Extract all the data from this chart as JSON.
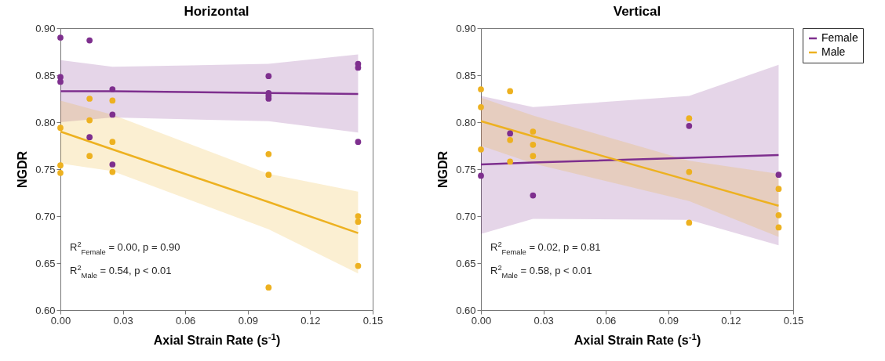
{
  "chart_data": [
    {
      "type": "scatter",
      "title": "Horizontal",
      "xlabel": "Axial Strain Rate (s$^{-1}$)",
      "ylabel": "NGDR",
      "marker": "circle",
      "xlim": [
        0,
        0.15
      ],
      "ylim": [
        0.6,
        0.9
      ],
      "xticks": [
        {
          "value": 0,
          "label": "0.00"
        },
        0.03,
        0.06,
        0.09,
        0.12,
        0.15
      ],
      "yticks": [
        {
          "value": 0.6,
          "label": "0.60"
        },
        0.65,
        {
          "value": 0.7,
          "label": "0.70"
        },
        0.75,
        {
          "value": 0.8,
          "label": "0.80"
        },
        0.85,
        {
          "value": 0.9,
          "label": "0.90"
        }
      ],
      "annotations": [
        "R$^{2}$$_{Female}$ = 0.00, p = 0.90",
        "R$^{2}$$_{Male}$ = 0.54, p < 0.01"
      ],
      "series": [
        {
          "type": "line",
          "marker": "none",
          "color": "#7e2f8e",
          "x": [
            0,
            0.025,
            0.1,
            0.143
          ],
          "values": [
            0.833,
            0.833,
            0.831,
            0.83
          ],
          "lower": [
            0.8,
            0.805,
            0.801,
            0.789
          ],
          "upper": [
            0.866,
            0.859,
            0.862,
            0.872
          ]
        },
        {
          "type": "line",
          "marker": "none",
          "color": "#edb120",
          "x": [
            0,
            0.025,
            0.1,
            0.143
          ],
          "values": [
            0.79,
            0.771,
            0.715,
            0.682
          ],
          "lower": [
            0.756,
            0.748,
            0.686,
            0.639
          ],
          "upper": [
            0.823,
            0.808,
            0.745,
            0.726
          ]
        },
        {
          "type": "scatter",
          "color": "#7e2f8e",
          "x": [
            0,
            0,
            0,
            0.014,
            0.014,
            0.025,
            0.025,
            0.025,
            0.1,
            0.1,
            0.1,
            0.1,
            0.143,
            0.143,
            0.143
          ],
          "values": [
            0.89,
            0.848,
            0.843,
            0.887,
            0.784,
            0.835,
            0.808,
            0.755,
            0.849,
            0.831,
            0.825,
            0.828,
            0.862,
            0.858,
            0.779
          ]
        },
        {
          "type": "scatter",
          "color": "#edb120",
          "x": [
            0,
            0,
            0,
            0.014,
            0.014,
            0.014,
            0.025,
            0.025,
            0.025,
            0.1,
            0.1,
            0.1,
            0.143,
            0.143,
            0.143
          ],
          "values": [
            0.794,
            0.754,
            0.746,
            0.825,
            0.802,
            0.764,
            0.823,
            0.779,
            0.747,
            0.766,
            0.744,
            0.624,
            0.7,
            0.694,
            0.647
          ]
        }
      ]
    },
    {
      "type": "scatter",
      "title": "Vertical",
      "xlabel": "Axial Strain Rate (s$^{-1}$)",
      "ylabel": "NGDR",
      "marker": "circle",
      "legend": "right",
      "xlim": [
        0,
        0.15
      ],
      "ylim": [
        0.6,
        0.9
      ],
      "xticks": [
        {
          "value": 0,
          "label": "0.00"
        },
        0.03,
        0.06,
        0.09,
        0.12,
        0.15
      ],
      "yticks": [
        {
          "value": 0.6,
          "label": "0.60"
        },
        0.65,
        {
          "value": 0.7,
          "label": "0.70"
        },
        0.75,
        {
          "value": 0.8,
          "label": "0.80"
        },
        0.85,
        {
          "value": 0.9,
          "label": "0.90"
        }
      ],
      "annotations": [
        "R$^{2}$$_{Female}$ = 0.02, p = 0.81",
        "R$^{2}$$_{Male}$ = 0.58, p < 0.01"
      ],
      "series": [
        {
          "type": "line",
          "name": "Female",
          "marker": "none",
          "color": "#7e2f8e",
          "x": [
            0,
            0.025,
            0.1,
            0.143
          ],
          "values": [
            0.755,
            0.757,
            0.762,
            0.765
          ],
          "lower": [
            0.681,
            0.697,
            0.696,
            0.669
          ],
          "upper": [
            0.828,
            0.816,
            0.828,
            0.861
          ]
        },
        {
          "type": "line",
          "name": "Male",
          "marker": "none",
          "color": "#edb120",
          "x": [
            0,
            0.025,
            0.1,
            0.143
          ],
          "values": [
            0.801,
            0.785,
            0.738,
            0.711
          ],
          "lower": [
            0.775,
            0.756,
            0.716,
            0.678
          ],
          "upper": [
            0.826,
            0.807,
            0.759,
            0.745
          ]
        },
        {
          "type": "scatter",
          "color": "#7e2f8e",
          "x": [
            0,
            0.014,
            0.025,
            0.1,
            0.143
          ],
          "values": [
            0.743,
            0.788,
            0.722,
            0.796,
            0.744
          ]
        },
        {
          "type": "scatter",
          "color": "#edb120",
          "x": [
            0,
            0,
            0,
            0.014,
            0.014,
            0.014,
            0.025,
            0.025,
            0.025,
            0.1,
            0.1,
            0.1,
            0.143,
            0.143,
            0.143
          ],
          "values": [
            0.835,
            0.816,
            0.771,
            0.833,
            0.781,
            0.758,
            0.79,
            0.776,
            0.764,
            0.804,
            0.747,
            0.693,
            0.729,
            0.701,
            0.688
          ]
        }
      ]
    }
  ]
}
